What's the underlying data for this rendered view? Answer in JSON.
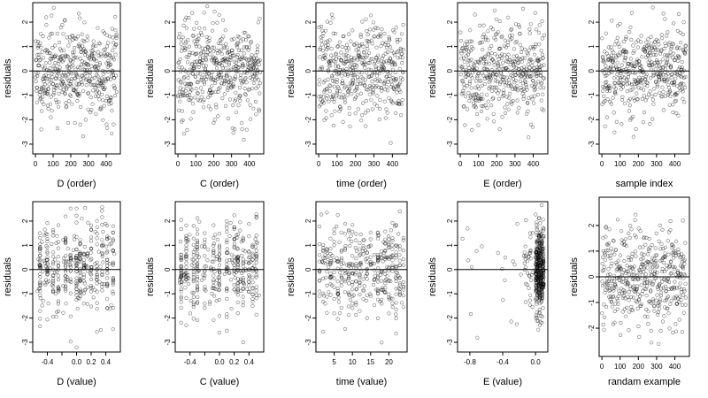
{
  "chart_data": [
    {
      "type": "scatter",
      "xlabel": "D (order)",
      "ylabel": "residuals",
      "xlim": [
        -15,
        480
      ],
      "ylim": [
        -3.4,
        2.8
      ],
      "xticks": [
        0,
        100,
        200,
        300,
        400
      ],
      "xtick_labels": [
        "0",
        "100",
        "200",
        "300",
        "400"
      ],
      "yticks": [
        -3,
        -2,
        -1,
        0,
        1,
        2
      ],
      "ytick_labels": [
        "-3",
        "-2",
        "-1",
        "0",
        "1",
        "2"
      ],
      "hline": 0,
      "mode": "order",
      "n": 460,
      "seed": 11,
      "points": []
    },
    {
      "type": "scatter",
      "xlabel": "C (order)",
      "ylabel": "residuals",
      "xlim": [
        -15,
        480
      ],
      "ylim": [
        -3.4,
        2.8
      ],
      "xticks": [
        0,
        100,
        200,
        300,
        400
      ],
      "xtick_labels": [
        "0",
        "100",
        "200",
        "300",
        "400"
      ],
      "yticks": [
        -3,
        -2,
        -1,
        0,
        1,
        2
      ],
      "ytick_labels": [
        "-3",
        "-2",
        "-1",
        "0",
        "1",
        "2"
      ],
      "hline": 0,
      "mode": "order",
      "n": 460,
      "seed": 23,
      "points": []
    },
    {
      "type": "scatter",
      "xlabel": "time (order)",
      "ylabel": "residuals",
      "xlim": [
        -15,
        480
      ],
      "ylim": [
        -3.4,
        2.8
      ],
      "xticks": [
        0,
        100,
        200,
        300,
        400
      ],
      "xtick_labels": [
        "0",
        "100",
        "200",
        "300",
        "400"
      ],
      "yticks": [
        -3,
        -2,
        -1,
        0,
        1,
        2
      ],
      "ytick_labels": [
        "-3",
        "-2",
        "-1",
        "0",
        "1",
        "2"
      ],
      "hline": 0,
      "mode": "order",
      "n": 460,
      "seed": 37,
      "points": []
    },
    {
      "type": "scatter",
      "xlabel": "E (order)",
      "ylabel": "residuals",
      "xlim": [
        -15,
        480
      ],
      "ylim": [
        -3.4,
        2.8
      ],
      "xticks": [
        0,
        100,
        200,
        300,
        400
      ],
      "xtick_labels": [
        "0",
        "100",
        "200",
        "300",
        "400"
      ],
      "yticks": [
        -3,
        -2,
        -1,
        0,
        1,
        2
      ],
      "ytick_labels": [
        "-3",
        "-2",
        "-1",
        "0",
        "1",
        "2"
      ],
      "hline": 0,
      "mode": "order",
      "n": 460,
      "seed": 41,
      "points": []
    },
    {
      "type": "scatter",
      "xlabel": "sample index",
      "ylabel": "residuals",
      "xlim": [
        -15,
        480
      ],
      "ylim": [
        -3.4,
        2.8
      ],
      "xticks": [
        0,
        100,
        200,
        300,
        400
      ],
      "xtick_labels": [
        "0",
        "100",
        "200",
        "300",
        "400"
      ],
      "yticks": [
        -3,
        -2,
        -1,
        0,
        1,
        2
      ],
      "ytick_labels": [
        "-3",
        "-2",
        "-1",
        "0",
        "1",
        "2"
      ],
      "hline": 0,
      "mode": "order",
      "n": 460,
      "seed": 53,
      "points": []
    },
    {
      "type": "scatter",
      "xlabel": "D (value)",
      "ylabel": "residuals",
      "xlim": [
        -0.6,
        0.6
      ],
      "ylim": [
        -3.4,
        2.8
      ],
      "xticks": [
        -0.4,
        -0.2,
        0.0,
        0.2,
        0.4
      ],
      "xtick_labels": [
        "-0.4",
        "",
        "0.0",
        "0.2",
        "0.4"
      ],
      "yticks": [
        -3,
        -2,
        -1,
        0,
        1,
        2
      ],
      "ytick_labels": [
        "-3",
        "-2",
        "-1",
        "0",
        "1",
        "2"
      ],
      "hline": 0,
      "mode": "columns",
      "columns": [
        -0.5,
        -0.4,
        -0.32,
        -0.25,
        -0.15,
        -0.08,
        0,
        0.05,
        0.1,
        0.15,
        0.2,
        0.28,
        0.35,
        0.42,
        0.5
      ],
      "n": 400,
      "seed": 67,
      "points": []
    },
    {
      "type": "scatter",
      "xlabel": "C (value)",
      "ylabel": "residuals",
      "xlim": [
        -0.6,
        0.6
      ],
      "ylim": [
        -3.4,
        2.8
      ],
      "xticks": [
        -0.4,
        -0.2,
        0.0,
        0.2,
        0.4
      ],
      "xtick_labels": [
        "-0.4",
        "",
        "0.0",
        "0.2",
        "0.4"
      ],
      "yticks": [
        -3,
        -2,
        -1,
        0,
        1,
        2
      ],
      "ytick_labels": [
        "-3",
        "-2",
        "-1",
        "0",
        "1",
        "2"
      ],
      "hline": 0,
      "mode": "columns",
      "columns": [
        -0.52,
        -0.45,
        -0.35,
        -0.3,
        -0.2,
        -0.08,
        0,
        0.1,
        0.2,
        0.25,
        0.32,
        0.4,
        0.45,
        0.5
      ],
      "n": 400,
      "seed": 71,
      "points": []
    },
    {
      "type": "scatter",
      "xlabel": "time (value)",
      "ylabel": "residuals",
      "xlim": [
        0,
        25
      ],
      "ylim": [
        -3.4,
        2.8
      ],
      "xticks": [
        5,
        10,
        15,
        20
      ],
      "xtick_labels": [
        "5",
        "10",
        "15",
        "20"
      ],
      "yticks": [
        -3,
        -2,
        -1,
        0,
        1,
        2
      ],
      "ytick_labels": [
        "-3",
        "-2",
        "-1",
        "0",
        "1",
        "2"
      ],
      "hline": 0,
      "mode": "columns",
      "columns": [
        1,
        2,
        3,
        4,
        5,
        6,
        7,
        8,
        9,
        10,
        11,
        12,
        13,
        14,
        15,
        16,
        17,
        18,
        19,
        20,
        21,
        22,
        23,
        24
      ],
      "n": 400,
      "seed": 83,
      "points": []
    },
    {
      "type": "scatter",
      "xlabel": "E (value)",
      "ylabel": "residuals",
      "xlim": [
        -0.95,
        0.15
      ],
      "ylim": [
        -3.4,
        2.8
      ],
      "xticks": [
        -0.8,
        -0.4,
        0.0
      ],
      "xtick_labels": [
        "-0.8",
        "-0.4",
        "0.0"
      ],
      "yticks": [
        -3,
        -2,
        -1,
        0,
        1,
        2
      ],
      "ytick_labels": [
        "-3",
        "-2",
        "-1",
        "0",
        "1",
        "2"
      ],
      "hline": 0,
      "mode": "skewed",
      "n": 420,
      "seed": 97,
      "points": []
    },
    {
      "type": "scatter",
      "xlabel": "randam example",
      "ylabel": "residuals",
      "xlim": [
        -15,
        480
      ],
      "ylim": [
        -3.1,
        3.1
      ],
      "xticks": [
        0,
        100,
        200,
        300,
        400
      ],
      "xtick_labels": [
        "0",
        "100",
        "200",
        "300",
        "400"
      ],
      "yticks": [
        -2,
        -1,
        0,
        1,
        2
      ],
      "ytick_labels": [
        "-2",
        "-1",
        "0",
        "1",
        "2"
      ],
      "hline": 0,
      "mode": "order",
      "n": 460,
      "seed": 101,
      "points": []
    }
  ]
}
